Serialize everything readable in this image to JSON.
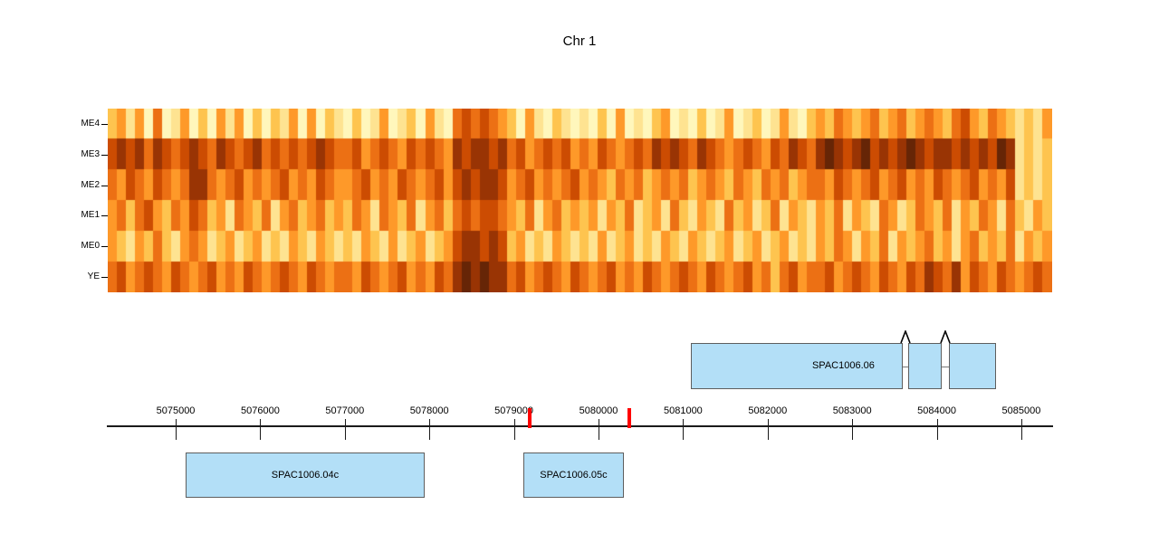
{
  "chart_data": {
    "type": "heatmap",
    "title": "Chr 1",
    "genome": {
      "bp_start": 5074186,
      "bp_end": 5085375
    },
    "palette": [
      "#FFFFE5",
      "#FFF7BC",
      "#FEE391",
      "#FEC44F",
      "#FE9929",
      "#EC7014",
      "#CC4C02",
      "#993404",
      "#662506"
    ],
    "heatmap_rows": [
      {
        "label": "ME4",
        "values": "342415124131424131324141321312412314215656543142132121314121341213124123124213435434534534543564354323 24"
      },
      {
        "label": "ME3",
        "values": "676757656765765675656567655645654656547677675645656454654565767657654565465765787678676787677676768723 23"
      },
      {
        "label": "ME2",
        "values": "546546545775456454564546544564546545646767764564545645435453454534543543545345546545645645465456454623 23"
      },
      {
        "label": "ME1",
        "values": "453564354653425435245345343542543524535656654352453434243523425324325342352432435243254235435243542532 43"
      },
      {
        "label": "ME0",
        "values": "432435324542342342324324323243242342346776763423243232423423243243234234234232435424352434534245343524 34"
      },
      {
        "label": "YE",
        "values": "564565465456454654565465455465456454657878775645654654564546545654654564535645564565465465765746546545 65"
      }
    ],
    "axis_ticks": [
      {
        "bp": 5075000,
        "label": "5075000"
      },
      {
        "bp": 5076000,
        "label": "5076000"
      },
      {
        "bp": 5077000,
        "label": "5077000"
      },
      {
        "bp": 5078000,
        "label": "5078000"
      },
      {
        "bp": 5079000,
        "label": "5079000"
      },
      {
        "bp": 5080000,
        "label": "5080000"
      },
      {
        "bp": 5081000,
        "label": "5081000"
      },
      {
        "bp": 5082000,
        "label": "5082000"
      },
      {
        "bp": 5083000,
        "label": "5083000"
      },
      {
        "bp": 5084000,
        "label": "5084000"
      },
      {
        "bp": 5085000,
        "label": "5085000"
      }
    ],
    "highlight_color": "#FF0000",
    "highlight_marks": [
      {
        "bp": 5079190
      },
      {
        "bp": 5080365
      }
    ],
    "gene_style": {
      "fill": "#B3DFF7",
      "border": "#5E5E5E"
    },
    "genes": [
      {
        "label": "SPAC1006.06",
        "row": "above",
        "exons": [
          [
            5081091,
            5083597
          ],
          [
            5083661,
            5084057
          ],
          [
            5084143,
            5084700
          ]
        ]
      },
      {
        "label": "SPAC1006.04c",
        "row": "below",
        "exons": [
          [
            5075117,
            5077944
          ]
        ]
      },
      {
        "label": "SPAC1006.05c",
        "row": "below",
        "exons": [
          [
            5079111,
            5080299
          ]
        ]
      }
    ]
  }
}
